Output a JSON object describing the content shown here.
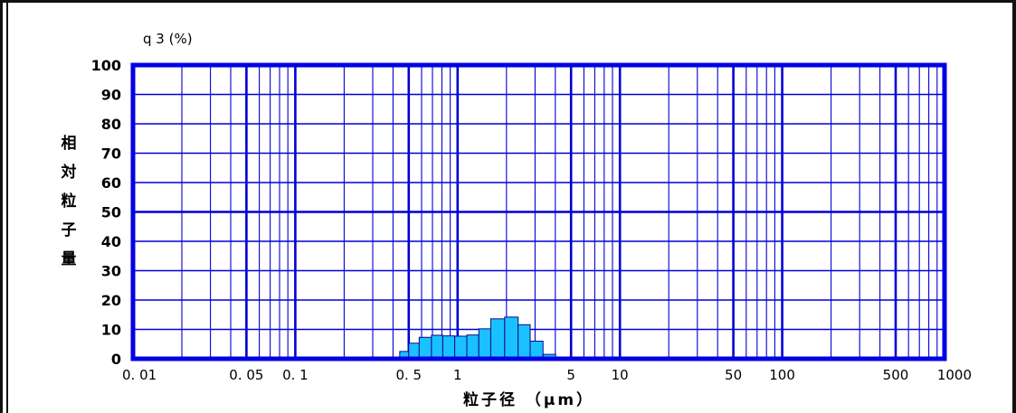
{
  "chart_data": {
    "type": "bar",
    "title": "",
    "y_unit_label": "q 3 (%)",
    "ylabel_chars": [
      "相",
      "対",
      "粒",
      "子",
      "量"
    ],
    "xlabel": "粒子径 （μm）",
    "x_scale": "log",
    "xlim": [
      0.01,
      1000
    ],
    "ylim": [
      0,
      100
    ],
    "y_ticks": [
      "0",
      "10",
      "20",
      "30",
      "40",
      "50",
      "60",
      "70",
      "80",
      "90",
      "100"
    ],
    "x_ticks": [
      {
        "value": 0.01,
        "label": "0. 01"
      },
      {
        "value": 0.05,
        "label": "0. 05"
      },
      {
        "value": 0.1,
        "label": "0. 1"
      },
      {
        "value": 0.5,
        "label": "0. 5"
      },
      {
        "value": 1,
        "label": "1"
      },
      {
        "value": 5,
        "label": "5"
      },
      {
        "value": 10,
        "label": "10"
      },
      {
        "value": 50,
        "label": "50"
      },
      {
        "value": 100,
        "label": "100"
      },
      {
        "value": 500,
        "label": "500"
      },
      {
        "value": 1000,
        "label": "1000"
      }
    ],
    "bins": [
      {
        "from": 0.44,
        "to": 0.5,
        "value": 2.5
      },
      {
        "from": 0.5,
        "to": 0.58,
        "value": 5.3
      },
      {
        "from": 0.58,
        "to": 0.69,
        "value": 7.3
      },
      {
        "from": 0.69,
        "to": 0.81,
        "value": 8.0
      },
      {
        "from": 0.81,
        "to": 0.96,
        "value": 7.8
      },
      {
        "from": 0.96,
        "to": 1.14,
        "value": 7.7
      },
      {
        "from": 1.14,
        "to": 1.35,
        "value": 8.1
      },
      {
        "from": 1.35,
        "to": 1.6,
        "value": 10.2
      },
      {
        "from": 1.6,
        "to": 1.95,
        "value": 13.6
      },
      {
        "from": 1.95,
        "to": 2.36,
        "value": 14.2
      },
      {
        "from": 2.36,
        "to": 2.8,
        "value": 11.6
      },
      {
        "from": 2.8,
        "to": 3.36,
        "value": 6.0
      },
      {
        "from": 3.36,
        "to": 4.02,
        "value": 1.5
      }
    ],
    "grid": true,
    "colors": {
      "axis": "#0000e6",
      "grid": "#0000d4",
      "bar_fill": "#1ac1ff",
      "bar_edge": "#0a0a8a"
    }
  }
}
